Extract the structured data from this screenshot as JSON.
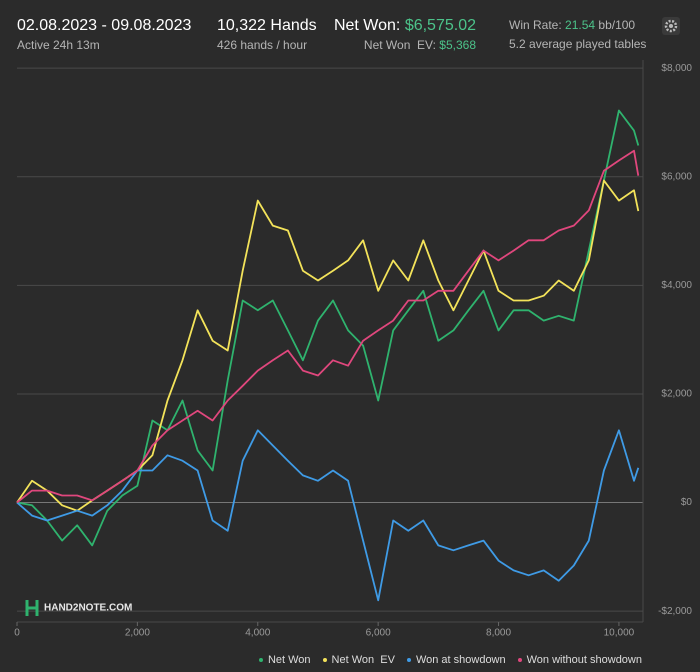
{
  "header": {
    "date_range": "02.08.2023 - 09.08.2023",
    "active": "Active 24h 13m",
    "hands": "10,322 Hands",
    "hands_per_hour": "426 hands / hour",
    "net_won_label": "Net Won:",
    "net_won_value": "$6,575.02",
    "net_won_ev_label": "Net Won  EV:",
    "net_won_ev_value": "$5,368",
    "win_rate_label": "Win Rate:",
    "win_rate_value": "21.54",
    "win_rate_unit": "bb/100",
    "tables": "5.2 average played tables",
    "logo": "HAND2NOTE.COM"
  },
  "chart_data": {
    "type": "line",
    "x": [
      0,
      250,
      500,
      750,
      1000,
      1250,
      1500,
      1750,
      2000,
      2250,
      2500,
      2750,
      3000,
      3250,
      3500,
      3750,
      4000,
      4250,
      4500,
      4750,
      5000,
      5250,
      5500,
      5750,
      6000,
      6250,
      6500,
      6750,
      7000,
      7250,
      7500,
      7750,
      8000,
      8250,
      8500,
      8750,
      9000,
      9250,
      9500,
      9750,
      10000,
      10250,
      10322
    ],
    "series": [
      {
        "name": "Net Won",
        "color": "#2fb36e",
        "values": [
          0,
          -50,
          -330,
          -700,
          -420,
          -790,
          -150,
          130,
          310,
          1510,
          1330,
          1880,
          960,
          590,
          2250,
          3720,
          3540,
          3720,
          3170,
          2620,
          3350,
          3720,
          3170,
          2890,
          1880,
          3170,
          3540,
          3900,
          2980,
          3170,
          3540,
          3900,
          3170,
          3540,
          3540,
          3350,
          3440,
          3350,
          4640,
          5930,
          7220,
          6850,
          6575
        ]
      },
      {
        "name": "Net Won  EV",
        "color": "#f3e35a",
        "values": [
          0,
          400,
          220,
          -50,
          -150,
          40,
          220,
          400,
          590,
          870,
          1880,
          2620,
          3540,
          2980,
          2800,
          4270,
          5560,
          5100,
          5010,
          4270,
          4090,
          4270,
          4460,
          4830,
          3900,
          4460,
          4090,
          4830,
          4090,
          3540,
          4090,
          4640,
          3900,
          3720,
          3720,
          3810,
          4090,
          3900,
          4460,
          5930,
          5560,
          5750,
          5368
        ]
      },
      {
        "name": "Won at showdown",
        "color": "#3f9be6",
        "values": [
          0,
          -240,
          -330,
          -240,
          -150,
          -240,
          -50,
          220,
          590,
          590,
          870,
          770,
          590,
          -330,
          -520,
          770,
          1330,
          1050,
          770,
          500,
          400,
          590,
          400,
          -700,
          -1800,
          -330,
          -520,
          -330,
          -790,
          -880,
          -790,
          -700,
          -1070,
          -1250,
          -1340,
          -1250,
          -1440,
          -1160,
          -700,
          590,
          1330,
          400,
          640
        ]
      },
      {
        "name": "Won without showdown",
        "color": "#e0477d",
        "values": [
          0,
          220,
          220,
          130,
          130,
          40,
          220,
          400,
          590,
          1050,
          1330,
          1510,
          1690,
          1510,
          1880,
          2150,
          2430,
          2620,
          2800,
          2430,
          2340,
          2620,
          2520,
          2980,
          3170,
          3350,
          3720,
          3720,
          3900,
          3900,
          4270,
          4640,
          4460,
          4640,
          4830,
          4830,
          5010,
          5100,
          5380,
          6110,
          6300,
          6480,
          6020
        ]
      }
    ],
    "xlim": [
      0,
      10400
    ],
    "ylim": [
      -2200,
      8150
    ],
    "xticks": [
      0,
      {
        "value": 2000,
        "label": "2,000"
      },
      {
        "value": 4000,
        "label": "4,000"
      },
      {
        "value": 6000,
        "label": "6,000"
      },
      {
        "value": 8000,
        "label": "8,000"
      },
      {
        "value": 10000,
        "label": "10,000"
      }
    ],
    "yticks": [
      {
        "value": -2000,
        "label": "-$2,000"
      },
      {
        "value": 0,
        "label": "$0"
      },
      {
        "value": 2000,
        "label": "$2,000"
      },
      {
        "value": 4000,
        "label": "$4,000"
      },
      {
        "value": 6000,
        "label": "$6,000"
      },
      {
        "value": 8000,
        "label": "$8,000"
      }
    ],
    "grid": true
  }
}
